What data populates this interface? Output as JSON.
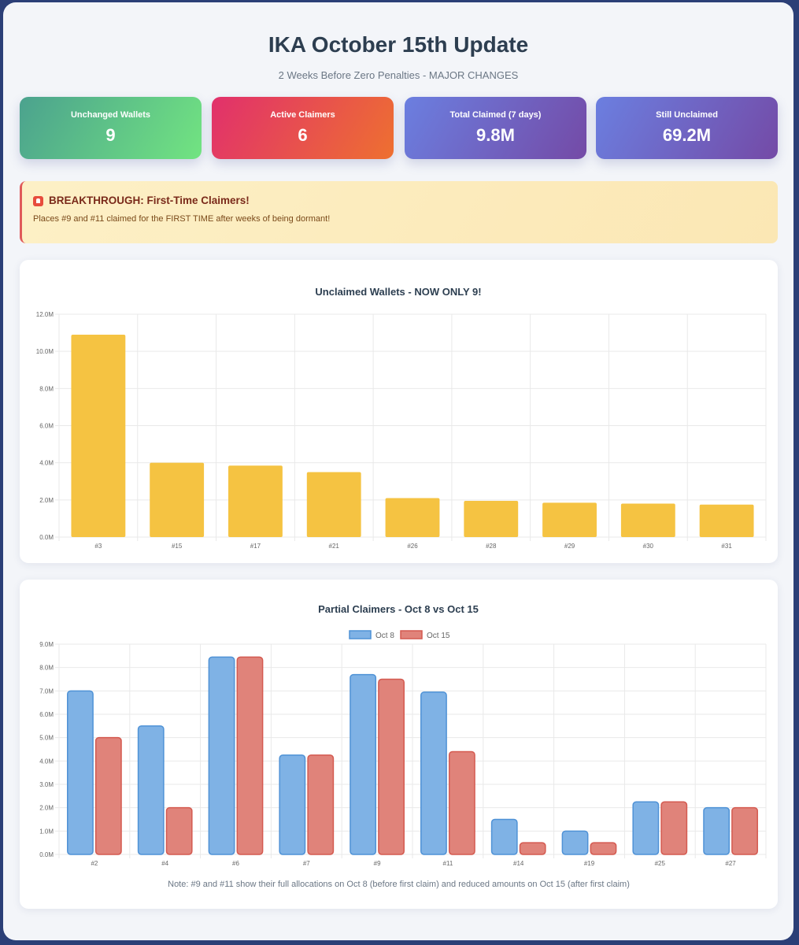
{
  "header": {
    "title": "IKA October 15th Update",
    "subtitle": "2 Weeks Before Zero Penalties - MAJOR CHANGES"
  },
  "stats": [
    {
      "label": "Unchanged Wallets",
      "value": "9"
    },
    {
      "label": "Active Claimers",
      "value": "6"
    },
    {
      "label": "Total Claimed (7 days)",
      "value": "9.8M"
    },
    {
      "label": "Still Unclaimed",
      "value": "69.2M"
    }
  ],
  "alert": {
    "icon": "siren-icon",
    "title": "BREAKTHROUGH: First-Time Claimers!",
    "text": "Places #9 and #11 claimed for the FIRST TIME after weeks of being dormant!"
  },
  "chart_data": [
    {
      "type": "bar",
      "title": "Unclaimed Wallets - NOW ONLY 9!",
      "categories": [
        "#3",
        "#15",
        "#17",
        "#21",
        "#26",
        "#28",
        "#29",
        "#30",
        "#31"
      ],
      "series": [
        {
          "values": [
            10.9,
            4.0,
            3.85,
            3.5,
            2.1,
            1.95,
            1.85,
            1.8,
            1.75
          ],
          "color": "#f5c342"
        }
      ],
      "ylim": [
        0,
        12
      ],
      "yticks": [
        "0.0M",
        "2.0M",
        "4.0M",
        "6.0M",
        "8.0M",
        "10.0M",
        "12.0M"
      ],
      "grid": true,
      "legend": "none"
    },
    {
      "type": "bar",
      "title": "Partial Claimers - Oct 8 vs Oct 15",
      "categories": [
        "#2",
        "#4",
        "#6",
        "#7",
        "#9",
        "#11",
        "#14",
        "#19",
        "#25",
        "#27"
      ],
      "series": [
        {
          "name": "Oct 8",
          "values": [
            7.0,
            5.5,
            8.45,
            4.25,
            7.7,
            6.95,
            1.5,
            1.0,
            2.25,
            2.0
          ],
          "color": "#7fb2e5",
          "border": "#4f92d6"
        },
        {
          "name": "Oct 15",
          "values": [
            5.0,
            2.0,
            8.45,
            4.25,
            7.5,
            4.4,
            0.5,
            0.5,
            2.25,
            2.0
          ],
          "color": "#e0837a",
          "border": "#d45a50"
        }
      ],
      "ylim": [
        0,
        9
      ],
      "yticks": [
        "0.0M",
        "1.0M",
        "2.0M",
        "3.0M",
        "4.0M",
        "5.0M",
        "6.0M",
        "7.0M",
        "8.0M",
        "9.0M"
      ],
      "grid": true,
      "legend": "top",
      "note": "Note: #9 and #11 show their full allocations on Oct 8 (before first claim) and reduced amounts on Oct 15 (after first claim)"
    }
  ]
}
